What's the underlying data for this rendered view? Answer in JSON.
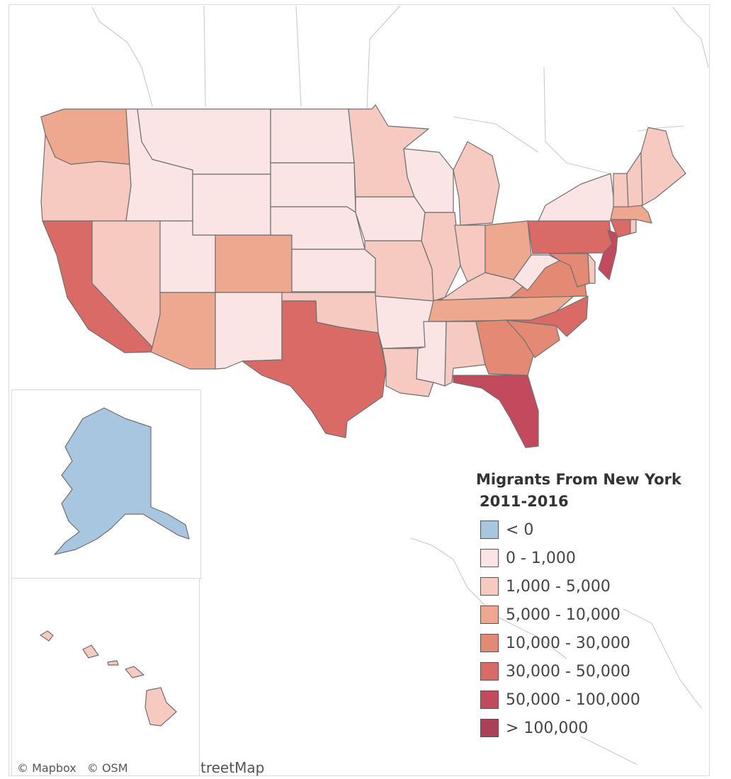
{
  "legend": {
    "title_line1": "Migrants From New York",
    "title_line2": "2011-2016",
    "bins": [
      {
        "label": "< 0",
        "color": "#a8c6df"
      },
      {
        "label": "0 - 1,000",
        "color": "#fbe5e4"
      },
      {
        "label": "1,000 - 5,000",
        "color": "#f6cac0"
      },
      {
        "label": "5,000 - 10,000",
        "color": "#eea890"
      },
      {
        "label": "10,000 - 30,000",
        "color": "#e48a74"
      },
      {
        "label": "30,000 - 50,000",
        "color": "#d96a66"
      },
      {
        "label": "50,000 - 100,000",
        "color": "#c14a5c"
      },
      {
        "label": "> 100,000",
        "color": "#ac4057"
      }
    ]
  },
  "attribution": {
    "mapbox": "© Mapbox",
    "osm": "© OSM",
    "overflow_text": "treetMap"
  },
  "states": [
    {
      "name": "Washington",
      "bin": 3
    },
    {
      "name": "Oregon",
      "bin": 2
    },
    {
      "name": "California",
      "bin": 5
    },
    {
      "name": "Idaho",
      "bin": 1
    },
    {
      "name": "Nevada",
      "bin": 2
    },
    {
      "name": "Montana",
      "bin": 1
    },
    {
      "name": "Wyoming",
      "bin": 1
    },
    {
      "name": "Utah",
      "bin": 1
    },
    {
      "name": "Arizona",
      "bin": 3
    },
    {
      "name": "Colorado",
      "bin": 3
    },
    {
      "name": "New Mexico",
      "bin": 1
    },
    {
      "name": "North Dakota",
      "bin": 1
    },
    {
      "name": "South Dakota",
      "bin": 1
    },
    {
      "name": "Nebraska",
      "bin": 1
    },
    {
      "name": "Kansas",
      "bin": 1
    },
    {
      "name": "Oklahoma",
      "bin": 2
    },
    {
      "name": "Texas",
      "bin": 5
    },
    {
      "name": "Minnesota",
      "bin": 2
    },
    {
      "name": "Iowa",
      "bin": 1
    },
    {
      "name": "Missouri",
      "bin": 2
    },
    {
      "name": "Arkansas",
      "bin": 1
    },
    {
      "name": "Louisiana",
      "bin": 2
    },
    {
      "name": "Wisconsin",
      "bin": 1
    },
    {
      "name": "Illinois",
      "bin": 2
    },
    {
      "name": "Michigan",
      "bin": 2
    },
    {
      "name": "Indiana",
      "bin": 2
    },
    {
      "name": "Ohio",
      "bin": 3
    },
    {
      "name": "Kentucky",
      "bin": 2
    },
    {
      "name": "Tennessee",
      "bin": 3
    },
    {
      "name": "Mississippi",
      "bin": 1
    },
    {
      "name": "Alabama",
      "bin": 2
    },
    {
      "name": "Georgia",
      "bin": 4
    },
    {
      "name": "Florida",
      "bin": 6
    },
    {
      "name": "South Carolina",
      "bin": 4
    },
    {
      "name": "North Carolina",
      "bin": 5
    },
    {
      "name": "Virginia",
      "bin": 4
    },
    {
      "name": "West Virginia",
      "bin": 1
    },
    {
      "name": "Pennsylvania",
      "bin": 5
    },
    {
      "name": "New Jersey",
      "bin": 6
    },
    {
      "name": "Maryland",
      "bin": 4
    },
    {
      "name": "Delaware",
      "bin": 2
    },
    {
      "name": "New York",
      "bin": 1
    },
    {
      "name": "Connecticut",
      "bin": 5
    },
    {
      "name": "Rhode Island",
      "bin": 2
    },
    {
      "name": "Massachusetts",
      "bin": 3
    },
    {
      "name": "Vermont",
      "bin": 2
    },
    {
      "name": "New Hampshire",
      "bin": 2
    },
    {
      "name": "Maine",
      "bin": 2
    },
    {
      "name": "Alaska",
      "bin": 0
    },
    {
      "name": "Hawaii",
      "bin": 2
    }
  ]
}
